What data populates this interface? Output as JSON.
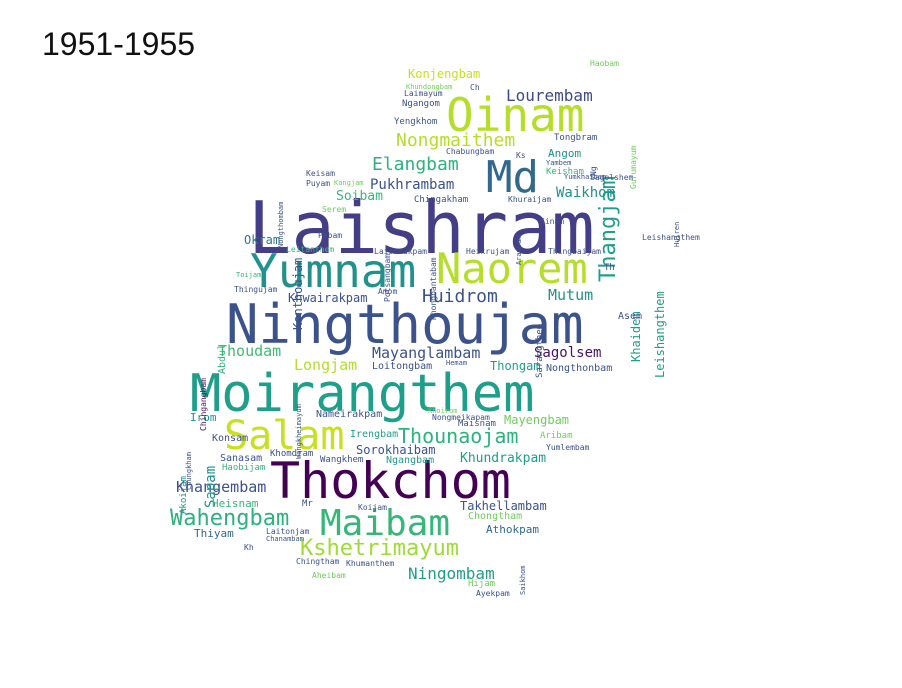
{
  "title": "1951-1955",
  "words": [
    {
      "text": "Laishram",
      "color": "#433e85"
    },
    {
      "text": "Moirangthem",
      "color": "#1f9e89"
    },
    {
      "text": "Ningthoujam",
      "color": "#3b528b"
    },
    {
      "text": "Thokchom",
      "color": "#440154"
    },
    {
      "text": "Yumnam",
      "color": "#21918c"
    },
    {
      "text": "Naorem",
      "color": "#b5de2b"
    },
    {
      "text": "Oinam",
      "color": "#b5de2b"
    },
    {
      "text": "Md",
      "color": "#31688e"
    },
    {
      "text": "Salam",
      "color": "#c8e020"
    },
    {
      "text": "Maibam",
      "color": "#35b779"
    },
    {
      "text": "Wahengbam",
      "color": "#2db27d"
    },
    {
      "text": "Kshetrimayum",
      "color": "#a0da39"
    },
    {
      "text": "Thangjam",
      "color": "#1f9e89"
    },
    {
      "text": "Lourembam",
      "color": "#3e4a89"
    },
    {
      "text": "Nongmaithem",
      "color": "#b5de2b"
    },
    {
      "text": "Elangbam",
      "color": "#2db27d"
    },
    {
      "text": "Pukhrambam",
      "color": "#3b528b"
    },
    {
      "text": "Huidrom",
      "color": "#3b528b"
    },
    {
      "text": "Mutum",
      "color": "#21918c"
    },
    {
      "text": "Thoudam",
      "color": "#3fbc73"
    },
    {
      "text": "Longjam",
      "color": "#b5de2b"
    },
    {
      "text": "Mayanglambam",
      "color": "#3b528b"
    },
    {
      "text": "Sagolsem",
      "color": "#471365"
    },
    {
      "text": "Thounaojam",
      "color": "#2db27d"
    },
    {
      "text": "Khangembam",
      "color": "#3b528b"
    },
    {
      "text": "Ningombam",
      "color": "#1f9e89"
    },
    {
      "text": "Khundrakpam",
      "color": "#1f9e89"
    },
    {
      "text": "Konjengbam",
      "color": "#c8e020"
    },
    {
      "text": "Waikhom",
      "color": "#21918c"
    },
    {
      "text": "Konthoujam",
      "color": "#3b528b"
    },
    {
      "text": "Khwairakpam",
      "color": "#3b528b"
    },
    {
      "text": "Okram",
      "color": "#2a788e"
    },
    {
      "text": "Soibam",
      "color": "#35b779"
    },
    {
      "text": "Leishangthem",
      "color": "#1f9e89"
    },
    {
      "text": "Khaidem",
      "color": "#1f9e89"
    },
    {
      "text": "Sapam",
      "color": "#21918c"
    },
    {
      "text": "Mayengbam",
      "color": "#6ece58"
    },
    {
      "text": "Sorokhaibam",
      "color": "#3b528b"
    },
    {
      "text": "Irengbam",
      "color": "#1f9e89"
    },
    {
      "text": "Thongam",
      "color": "#1f9e89"
    },
    {
      "text": "Nameirakpam",
      "color": "#3b528b"
    },
    {
      "text": "Loitongbam",
      "color": "#3b528b"
    },
    {
      "text": "Takhellambam",
      "color": "#3b528b"
    },
    {
      "text": "Chongtham",
      "color": "#6ece58"
    },
    {
      "text": "Athokpam",
      "color": "#31688e"
    },
    {
      "text": "Heisnam",
      "color": "#35b779"
    },
    {
      "text": "Thiyam",
      "color": "#31688e"
    },
    {
      "text": "Sanasam",
      "color": "#3b528b"
    },
    {
      "text": "Konsam",
      "color": "#3b528b"
    },
    {
      "text": "Irom",
      "color": "#21918c"
    },
    {
      "text": "Abdul",
      "color": "#35b779"
    },
    {
      "text": "Chingangbam",
      "color": "#471365"
    },
    {
      "text": "Angom",
      "color": "#21918c"
    },
    {
      "text": "Tongbram",
      "color": "#3b528b"
    },
    {
      "text": "Ngangom",
      "color": "#3b528b"
    },
    {
      "text": "Yengkhom",
      "color": "#3b528b"
    },
    {
      "text": "Laimayum",
      "color": "#3b528b"
    },
    {
      "text": "Haobam",
      "color": "#6ece58"
    },
    {
      "text": "Keisham",
      "color": "#35b779"
    },
    {
      "text": "Sagolshem",
      "color": "#3b528b"
    },
    {
      "text": "Khuraijam",
      "color": "#3b528b"
    },
    {
      "text": "Chingakham",
      "color": "#3b528b"
    },
    {
      "text": "Chabungbam",
      "color": "#3b528b"
    },
    {
      "text": "Keisam",
      "color": "#3b528b"
    },
    {
      "text": "Puyam",
      "color": "#3b528b"
    },
    {
      "text": "Pebam",
      "color": "#3b528b"
    },
    {
      "text": "Leitanthem",
      "color": "#35b779"
    },
    {
      "text": "Laishrakpam",
      "color": "#3b528b"
    },
    {
      "text": "Heikrujam",
      "color": "#3b528b"
    },
    {
      "text": "Thingbaijam",
      "color": "#3b528b"
    },
    {
      "text": "Sinam",
      "color": "#3b528b"
    },
    {
      "text": "Yumkhaibam",
      "color": "#3b528b"
    },
    {
      "text": "Yambem",
      "color": "#3b528b"
    },
    {
      "text": "Asem",
      "color": "#3b528b"
    },
    {
      "text": "Amom",
      "color": "#3b528b"
    },
    {
      "text": "Thingujam",
      "color": "#3b528b"
    },
    {
      "text": "Toijam",
      "color": "#35b779"
    },
    {
      "text": "Nongthombam",
      "color": "#3b528b"
    },
    {
      "text": "Hemam",
      "color": "#3b528b"
    },
    {
      "text": "Nongthonbam",
      "color": "#3b528b"
    },
    {
      "text": "Maisnam",
      "color": "#3b528b"
    },
    {
      "text": "Aribam",
      "color": "#6ece58"
    },
    {
      "text": "Yumlembam",
      "color": "#3b528b"
    },
    {
      "text": "Ngangbam",
      "color": "#1f9e89"
    },
    {
      "text": "Wangkhem",
      "color": "#3b528b"
    },
    {
      "text": "Khomdram",
      "color": "#3b528b"
    },
    {
      "text": "Haobijam",
      "color": "#35b779"
    },
    {
      "text": "Akoijam",
      "color": "#21918c"
    },
    {
      "text": "Chungkham",
      "color": "#3b528b"
    },
    {
      "text": "Koijam",
      "color": "#3b528b"
    },
    {
      "text": "Laitonjam",
      "color": "#3b528b"
    },
    {
      "text": "Chanambam",
      "color": "#3b528b"
    },
    {
      "text": "Chingtham",
      "color": "#3b528b"
    },
    {
      "text": "Khumanthem",
      "color": "#3b528b"
    },
    {
      "text": "Aheibam",
      "color": "#6ece58"
    },
    {
      "text": "Hijam",
      "color": "#6ece58"
    },
    {
      "text": "Ayekpam",
      "color": "#3b528b"
    },
    {
      "text": "Saikhom",
      "color": "#3b528b"
    },
    {
      "text": "Arambam",
      "color": "#3b528b"
    },
    {
      "text": "Sarangthem",
      "color": "#3b528b"
    },
    {
      "text": "Khongbantabam",
      "color": "#3b528b"
    },
    {
      "text": "Potsangbam",
      "color": "#3b528b"
    },
    {
      "text": "Wangkheimayum",
      "color": "#3b528b"
    },
    {
      "text": "Gurumayum",
      "color": "#6ece58"
    },
    {
      "text": "Huiren",
      "color": "#3b528b"
    },
    {
      "text": "Nongmeikapam",
      "color": "#3b528b"
    },
    {
      "text": "Khoirom",
      "color": "#6ece58"
    },
    {
      "text": "Serem",
      "color": "#6ece58"
    },
    {
      "text": "Kangjam",
      "color": "#6ece58"
    },
    {
      "text": "Leishangthem",
      "color": "#3b528b"
    },
    {
      "text": "Kh",
      "color": "#3b528b"
    },
    {
      "text": "Mr",
      "color": "#3b528b"
    },
    {
      "text": "Ks",
      "color": "#3b528b"
    },
    {
      "text": "Ng",
      "color": "#3b528b"
    },
    {
      "text": "Th",
      "color": "#3b528b"
    },
    {
      "text": "Ch",
      "color": "#3b528b"
    },
    {
      "text": "Khundongbam",
      "color": "#6ece58"
    }
  ]
}
